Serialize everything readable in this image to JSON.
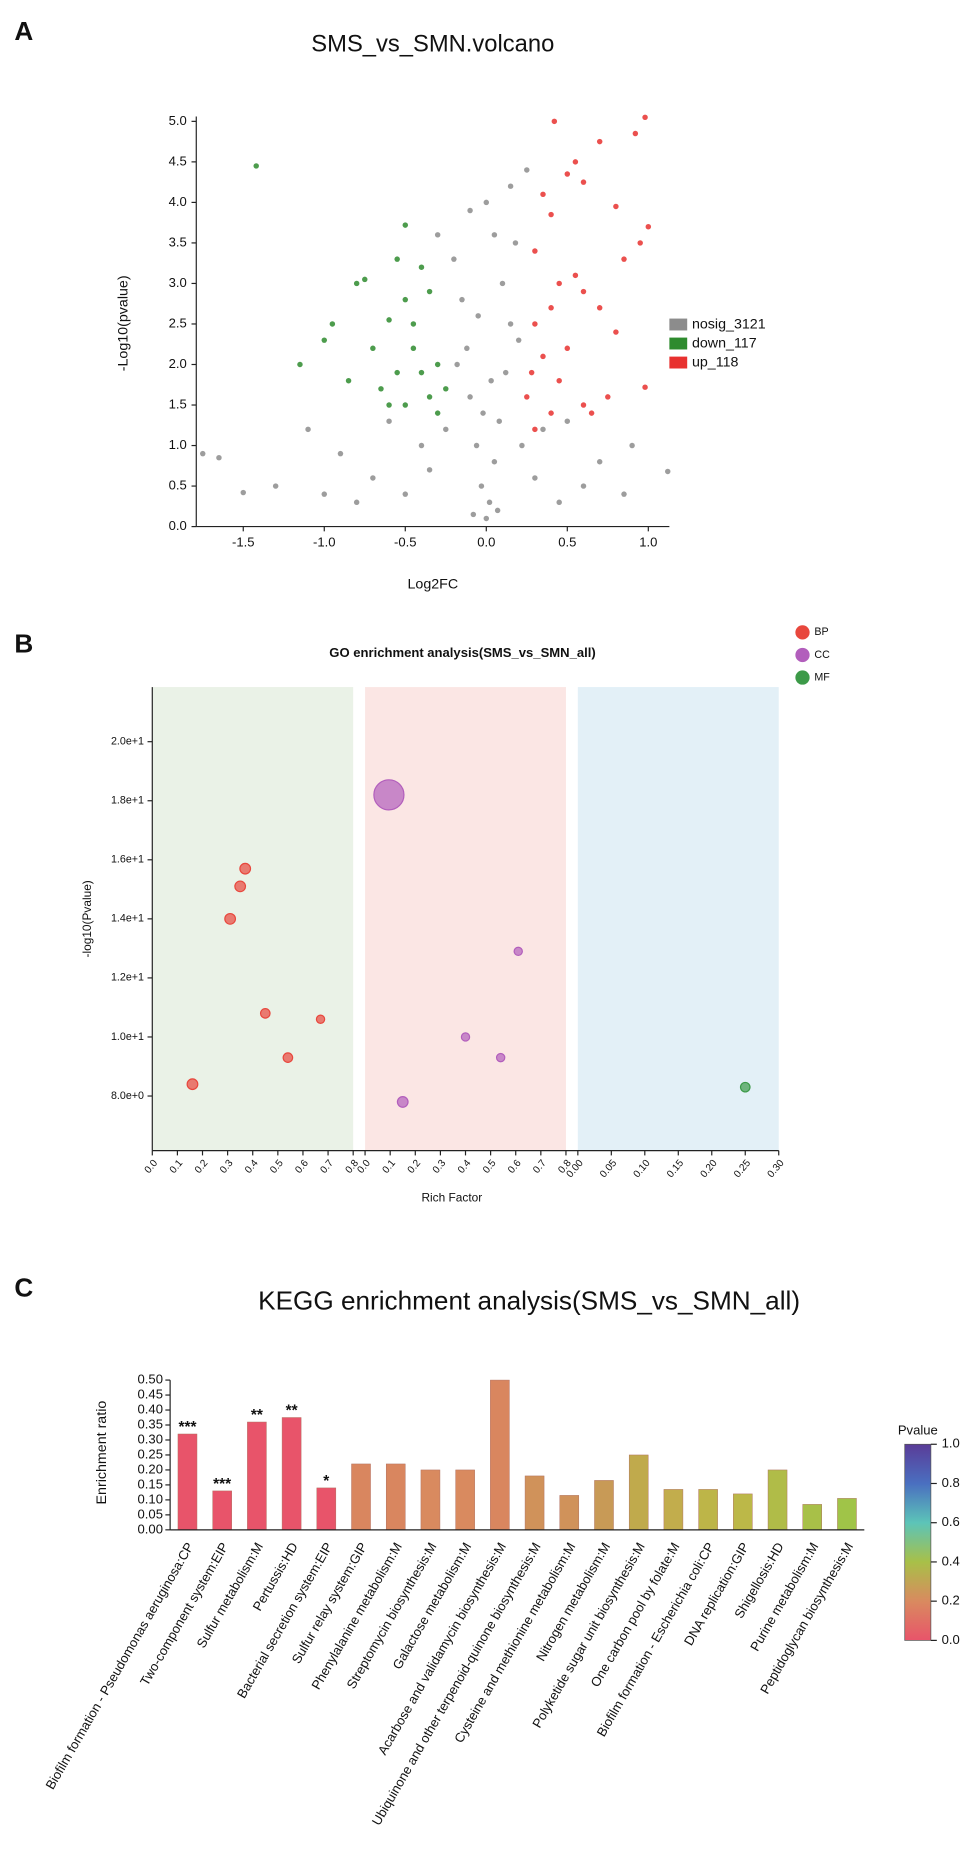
{
  "panel_labels": [
    "A",
    "B",
    "C"
  ],
  "chart_data": [
    {
      "type": "scatter",
      "title": "SMS_vs_SMN.volcano",
      "xlabel": "Log2FC",
      "ylabel": "-Log10(pvalue)",
      "xlim": [
        -1.79,
        1.13
      ],
      "ylim": [
        0,
        5.06
      ],
      "xticks": [
        -1.5,
        {
          "value": -1,
          "label": "-1.0"
        },
        -0.5,
        {
          "value": 0,
          "label": "0.0"
        },
        0.5,
        {
          "value": 1,
          "label": "1.0"
        }
      ],
      "yticks": [
        {
          "value": 0,
          "label": "0.0"
        },
        0.5,
        {
          "value": 1,
          "label": "1.0"
        },
        1.5,
        {
          "value": 2,
          "label": "2.0"
        },
        2.5,
        {
          "value": 3,
          "label": "3.0"
        },
        3.5,
        {
          "value": 4,
          "label": "4.0"
        },
        4.5,
        {
          "value": 5,
          "label": "5.0"
        }
      ],
      "legend": "right",
      "series": [
        {
          "name": "nosig_3121",
          "color": "#8c8c8c",
          "x": [
            0,
            0.02,
            -0.03,
            0.05,
            -0.06,
            0.08,
            -0.1,
            0.12,
            -0.12,
            0.15,
            -0.15,
            0.1,
            -0.2,
            0.05,
            -0.1,
            0,
            -0.18,
            0.2,
            -0.25,
            0.22,
            -0.35,
            0.3,
            -0.5,
            0.45,
            -0.7,
            0.6,
            -0.9,
            0.7,
            -1.1,
            0.9,
            -1.3,
            1.12,
            -1.5,
            -1.75,
            -1.65,
            -0.8,
            0.85,
            0.25,
            0.18,
            -0.3,
            0.15,
            -0.05,
            0.03,
            -0.02,
            0.07,
            -0.08,
            0.35,
            -0.4,
            -0.6,
            0.5,
            -1
          ],
          "values": [
            0.1,
            0.3,
            0.5,
            0.8,
            1,
            1.3,
            1.6,
            1.9,
            2.2,
            2.5,
            2.8,
            3,
            3.3,
            3.6,
            3.9,
            4,
            2,
            2.3,
            1.2,
            1,
            0.7,
            0.6,
            0.4,
            0.3,
            0.6,
            0.5,
            0.9,
            0.8,
            1.2,
            1,
            0.5,
            0.68,
            0.42,
            0.9,
            0.85,
            0.3,
            0.4,
            4.4,
            3.5,
            3.6,
            4.2,
            2.6,
            1.8,
            1.4,
            0.2,
            0.15,
            1.2,
            1,
            1.3,
            1.3,
            0.4
          ]
        },
        {
          "name": "down_117",
          "color": "#2e8b2e",
          "x": [
            -1.42,
            -0.5,
            -0.75,
            -0.8,
            -0.6,
            -1,
            -1.15,
            -0.95,
            -0.5,
            -0.4,
            -0.45,
            -0.55,
            -0.6,
            -0.35,
            -0.3,
            -0.4,
            -0.7,
            -0.85,
            -0.3,
            -0.25,
            -0.5,
            -0.65,
            -0.45,
            -0.35,
            -0.55
          ],
          "values": [
            4.45,
            3.72,
            3.05,
            3,
            2.55,
            2.3,
            2,
            2.5,
            2.8,
            3.2,
            2.2,
            1.9,
            1.5,
            1.6,
            1.4,
            1.9,
            2.2,
            1.8,
            2,
            1.7,
            1.5,
            1.7,
            2.5,
            2.9,
            3.3
          ]
        },
        {
          "name": "up_118",
          "color": "#e8312f",
          "x": [
            0.42,
            0.98,
            0.92,
            0.7,
            0.55,
            0.6,
            0.5,
            0.35,
            0.4,
            0.8,
            1,
            0.85,
            0.95,
            0.55,
            0.45,
            0.3,
            0.6,
            0.7,
            0.4,
            0.3,
            0.5,
            0.8,
            0.35,
            0.28,
            0.45,
            0.25,
            0.6,
            0.4,
            0.98,
            0.65,
            0.3,
            0.75
          ],
          "values": [
            5,
            5.05,
            4.85,
            4.75,
            4.5,
            4.25,
            4.35,
            4.1,
            3.85,
            3.95,
            3.7,
            3.3,
            3.5,
            3.1,
            3,
            3.4,
            2.9,
            2.7,
            2.7,
            2.5,
            2.2,
            2.4,
            2.1,
            1.9,
            1.8,
            1.6,
            1.5,
            1.4,
            1.72,
            1.4,
            1.2,
            1.6
          ]
        }
      ]
    },
    {
      "type": "bubble",
      "title": "GO enrichment analysis(SMS_vs_SMN_all)",
      "xlabel": "Rich Factor",
      "ylabel": "-log10(Pvalue)",
      "ylim": [
        6.15,
        21.85
      ],
      "yticks": [
        {
          "value": 8,
          "label": "8.0e+0"
        },
        {
          "value": 10,
          "label": "1.0e+1"
        },
        {
          "value": 12,
          "label": "1.2e+1"
        },
        {
          "value": 14,
          "label": "1.4e+1"
        },
        {
          "value": 16,
          "label": "1.6e+1"
        },
        {
          "value": 18,
          "label": "1.8e+1"
        },
        {
          "value": 20,
          "label": "2.0e+1"
        }
      ],
      "legend": "upper right",
      "series": [
        {
          "name": "BP",
          "color": "#e8473d",
          "background": "#eaf2e7",
          "xlim": [
            0,
            0.8
          ],
          "xticks": [
            {
              "value": 0,
              "label": "0.0"
            },
            0.1,
            0.2,
            0.3,
            0.4,
            0.5,
            0.6,
            0.7,
            0.8
          ],
          "x": [
            0.37,
            0.35,
            0.31,
            0.45,
            0.67,
            0.54,
            0.16
          ],
          "values": [
            15.7,
            15.1,
            14,
            10.8,
            10.6,
            9.3,
            8.4
          ],
          "sizes": [
            5,
            5,
            5,
            4,
            3,
            4,
            5
          ]
        },
        {
          "name": "CC",
          "color": "#b25ebc",
          "background": "#fbe6e4",
          "xlim": [
            0,
            0.8
          ],
          "xticks": [
            {
              "value": 0,
              "label": "0.0"
            },
            0.1,
            0.2,
            0.3,
            0.4,
            0.5,
            0.6,
            0.7,
            0.8
          ],
          "x": [
            0.095,
            0.61,
            0.4,
            0.54,
            0.15
          ],
          "values": [
            18.2,
            12.9,
            10,
            9.3,
            7.8
          ],
          "sizes": [
            40,
            3,
            3,
            3,
            5
          ]
        },
        {
          "name": "MF",
          "color": "#3c9a48",
          "background": "#e3f0f7",
          "xlim": [
            0,
            0.3
          ],
          "xticks": [
            {
              "value": 0,
              "label": "0.00"
            },
            0.05,
            {
              "value": 0.1,
              "label": "0.10"
            },
            0.15,
            {
              "value": 0.2,
              "label": "0.20"
            },
            0.25,
            {
              "value": 0.3,
              "label": "0.30"
            }
          ],
          "x": [
            0.25
          ],
          "values": [
            8.3
          ],
          "sizes": [
            4
          ]
        }
      ]
    },
    {
      "type": "bar",
      "title": "KEGG enrichment analysis(SMS_vs_SMN_all)",
      "ylabel": "Enrichment ratio",
      "ylim": [
        0,
        0.5
      ],
      "yticks": [
        {
          "value": 0,
          "label": "0.00"
        },
        0.05,
        {
          "value": 0.1,
          "label": "0.10"
        },
        0.15,
        {
          "value": 0.2,
          "label": "0.20"
        },
        0.25,
        {
          "value": 0.3,
          "label": "0.30"
        },
        0.35,
        {
          "value": 0.4,
          "label": "0.40"
        },
        0.45,
        {
          "value": 0.5,
          "label": "0.50"
        }
      ],
      "categories": [
        "Biofilm formation - Pseudomonas aeruginosa:CP",
        "Two-component system:EIP",
        "Sulfur metabolism:M",
        "Pertussis:HD",
        "Bacterial secretion system:EIP",
        "Sulfur relay system:GIP",
        "Phenylalanine metabolism:M",
        "Streptomycin biosynthesis:M",
        "Galactose metabolism:M",
        "Acarbose and validamycin biosynthesis:M",
        "Ubiquinone and other terpenoid-quinone biosynthesis:M",
        "Cysteine and methionine metabolism:M",
        "Nitrogen metabolism:M",
        "Polyketide sugar unit biosynthesis:M",
        "One carbon pool by folate:M",
        "Biofilm formation - Escherichia coli:CP",
        "DNA replication:GIP",
        "Shigellosis:HD",
        "Purine metabolism:M",
        "Peptidoglycan biosynthesis:M"
      ],
      "values": [
        0.32,
        0.13,
        0.36,
        0.375,
        0.14,
        0.22,
        0.22,
        0.2,
        0.2,
        0.5,
        0.18,
        0.115,
        0.165,
        0.25,
        0.135,
        0.135,
        0.12,
        0.2,
        0.085,
        0.105
      ],
      "colors": [
        "#e8546a",
        "#e8546a",
        "#e8546a",
        "#e8546a",
        "#e8546a",
        "#d9865f",
        "#d9865f",
        "#d98a5f",
        "#d98a5f",
        "#d9865f",
        "#d0925a",
        "#d0925a",
        "#c89a56",
        "#c0aa4c",
        "#c2ad4c",
        "#bdb548",
        "#bcb848",
        "#b0bc48",
        "#a8c048",
        "#a0c448"
      ],
      "annotations": [
        "***",
        "***",
        "**",
        "**",
        "*",
        null,
        null,
        null,
        null,
        null,
        null,
        null,
        null,
        null,
        null,
        null,
        null,
        null,
        null,
        null
      ],
      "colorbar": {
        "title": "Pvalue",
        "lim": [
          0,
          1
        ],
        "ticks": [
          {
            "value": 0,
            "label": "0.0"
          },
          0.2,
          0.4,
          0.6,
          0.8,
          {
            "value": 1,
            "label": "1.0"
          }
        ],
        "colors": [
          "#e8546a",
          "#d98a5f",
          "#a8c048",
          "#5cc4b8",
          "#4a6fc0",
          "#5a3c98"
        ]
      }
    }
  ]
}
